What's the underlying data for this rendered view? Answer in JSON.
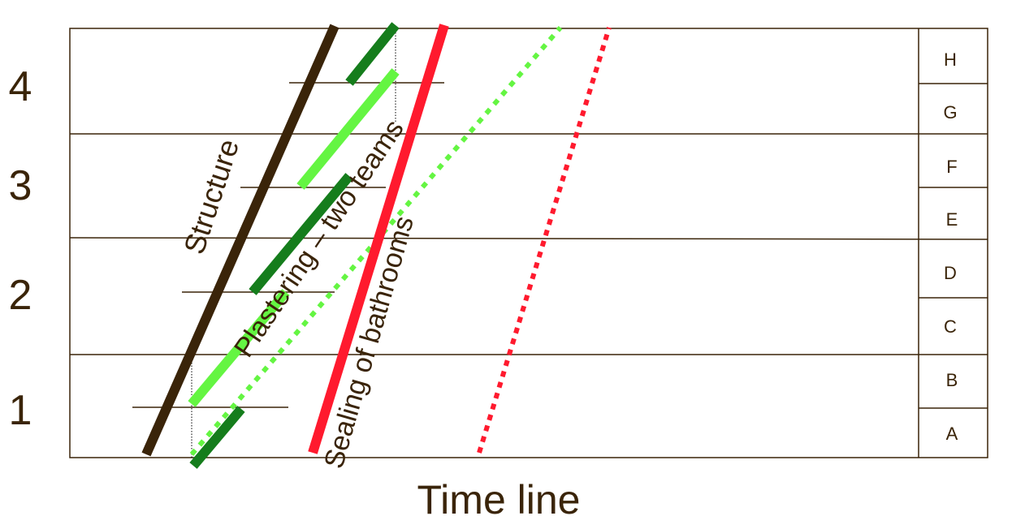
{
  "chart_data": {
    "type": "line",
    "title": "",
    "xlabel": "Time line",
    "ylabel": "",
    "floors": [
      "1",
      "2",
      "3",
      "4"
    ],
    "zones": [
      "A",
      "B",
      "C",
      "D",
      "E",
      "F",
      "G",
      "H"
    ],
    "activities": [
      {
        "name": "Structure",
        "color": "#3a2409",
        "style": "solid"
      },
      {
        "name": "Plastering – two teams",
        "color": "#64f542",
        "color_secondary": "#157d1c",
        "style": "solid"
      },
      {
        "name": "Sealing of bathrooms",
        "color": "#ff1a2e",
        "style": "solid"
      }
    ],
    "colors": {
      "frame": "#3a2409",
      "text": "#3a2409",
      "structure": "#3a2409",
      "plaster_team_1": "#64f542",
      "plaster_team_2": "#157d1c",
      "plaster_dotted": "#64f542",
      "sealing": "#ff1a2e",
      "sealing_dotted": "#ff1a2e"
    }
  }
}
